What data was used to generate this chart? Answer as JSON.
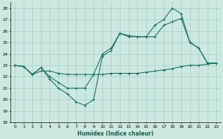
{
  "xlabel": "Humidex (Indice chaleur)",
  "background_color": "#cce8e0",
  "grid_color": "#9ecfc4",
  "line_color": "#1a6e5e",
  "xlim": [
    -0.5,
    23.5
  ],
  "ylim": [
    18,
    28.5
  ],
  "xticks": [
    0,
    1,
    2,
    3,
    4,
    5,
    6,
    7,
    8,
    9,
    10,
    11,
    12,
    13,
    14,
    15,
    16,
    17,
    18,
    19,
    20,
    21,
    22,
    23
  ],
  "yticks": [
    18,
    19,
    20,
    21,
    22,
    23,
    24,
    25,
    26,
    27,
    28
  ],
  "series1_x": [
    0,
    1,
    2,
    3,
    4,
    5,
    6,
    7,
    8,
    9,
    10,
    11,
    12,
    13,
    14,
    15,
    16,
    17,
    18,
    19,
    20,
    21,
    22,
    23
  ],
  "series1_y": [
    23.0,
    22.9,
    22.2,
    22.5,
    22.5,
    22.3,
    22.2,
    22.2,
    22.2,
    22.2,
    22.2,
    22.3,
    22.3,
    22.3,
    22.3,
    22.4,
    22.5,
    22.6,
    22.7,
    22.9,
    23.0,
    23.0,
    23.1,
    23.2
  ],
  "series2_x": [
    0,
    1,
    2,
    3,
    4,
    5,
    6,
    7,
    8,
    9,
    10,
    11,
    12,
    13,
    14,
    15,
    16,
    17,
    18,
    19,
    20,
    21,
    22,
    23
  ],
  "series2_y": [
    23.0,
    22.9,
    22.2,
    22.8,
    21.8,
    21.0,
    20.5,
    19.8,
    19.5,
    20.0,
    23.8,
    24.3,
    25.8,
    25.5,
    25.5,
    25.5,
    25.5,
    26.5,
    26.8,
    27.1,
    25.0,
    24.5,
    23.2,
    23.2
  ],
  "series3_x": [
    0,
    1,
    2,
    3,
    4,
    5,
    6,
    7,
    8,
    9,
    10,
    11,
    12,
    13,
    14,
    15,
    16,
    17,
    18,
    19,
    20,
    21,
    22,
    23
  ],
  "series3_y": [
    23.0,
    22.9,
    22.2,
    22.8,
    22.0,
    21.5,
    21.0,
    21.0,
    21.0,
    22.2,
    24.0,
    24.5,
    25.8,
    25.6,
    25.5,
    25.5,
    26.5,
    27.0,
    28.0,
    27.5,
    25.0,
    24.5,
    23.2,
    23.2
  ]
}
